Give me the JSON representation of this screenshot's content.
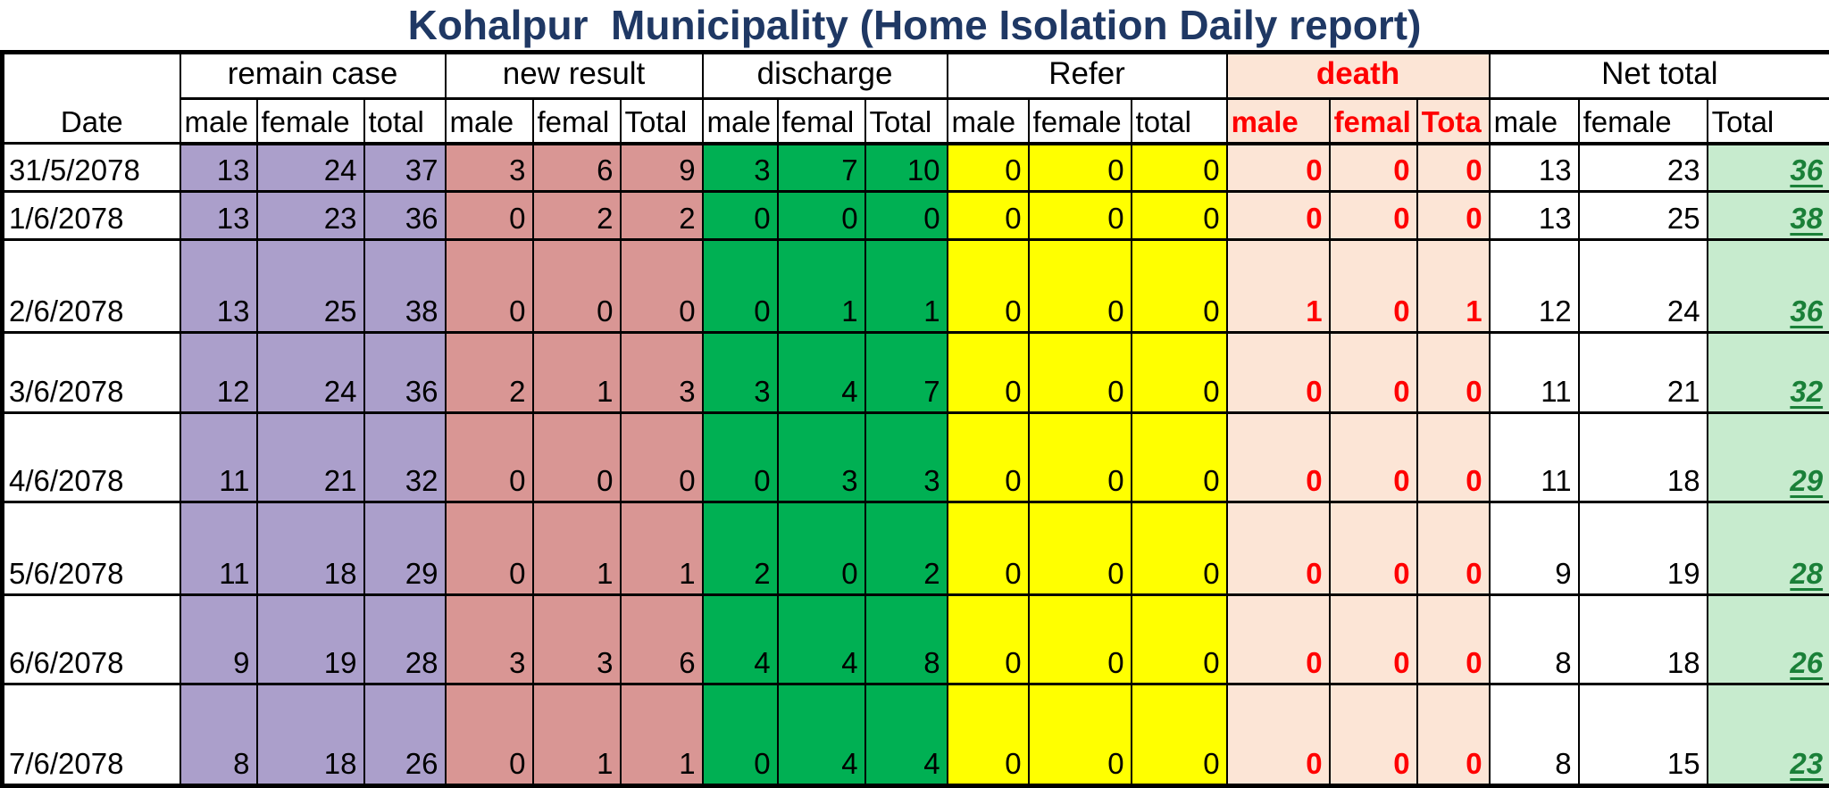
{
  "title": "Kohalpur  Municipality (Home Isolation Daily report)",
  "colors": {
    "title_text": "#1f3864",
    "border": "#000000",
    "remain_bg": "#ab9fcb",
    "new_result_bg": "#d99694",
    "discharge_bg": "#00b053",
    "refer_bg": "#ffff00",
    "death_bg": "#fce5d6",
    "death_text": "#ff0000",
    "net_total_bg": "#c7ebce",
    "net_total_text": "#1a8038"
  },
  "table": {
    "date_header": "Date",
    "groups": [
      {
        "label": "remain case",
        "sub": [
          "male",
          "female",
          "total"
        ]
      },
      {
        "label": "new result",
        "sub": [
          "male",
          "femal",
          "Total"
        ]
      },
      {
        "label": "discharge",
        "sub": [
          "male",
          "femal",
          "Total"
        ]
      },
      {
        "label": "Refer",
        "sub": [
          "male",
          "female",
          "total"
        ]
      },
      {
        "label": "death",
        "sub": [
          "male",
          "femal",
          "Tota"
        ]
      },
      {
        "label": "Net total",
        "sub": [
          "male",
          "female",
          "Total"
        ]
      }
    ],
    "rows": [
      {
        "date": "31/5/2078",
        "remain": [
          13,
          24,
          37
        ],
        "new_result": [
          3,
          6,
          9
        ],
        "discharge": [
          3,
          7,
          10
        ],
        "refer": [
          0,
          0,
          0
        ],
        "death": [
          0,
          0,
          0
        ],
        "net_total": [
          13,
          23,
          36
        ]
      },
      {
        "date": "1/6/2078",
        "remain": [
          13,
          23,
          36
        ],
        "new_result": [
          0,
          2,
          2
        ],
        "discharge": [
          0,
          0,
          0
        ],
        "refer": [
          0,
          0,
          0
        ],
        "death": [
          0,
          0,
          0
        ],
        "net_total": [
          13,
          25,
          38
        ]
      },
      {
        "date": "2/6/2078",
        "remain": [
          13,
          25,
          38
        ],
        "new_result": [
          0,
          0,
          0
        ],
        "discharge": [
          0,
          1,
          1
        ],
        "refer": [
          0,
          0,
          0
        ],
        "death": [
          1,
          0,
          1
        ],
        "net_total": [
          12,
          24,
          36
        ]
      },
      {
        "date": "3/6/2078",
        "remain": [
          12,
          24,
          36
        ],
        "new_result": [
          2,
          1,
          3
        ],
        "discharge": [
          3,
          4,
          7
        ],
        "refer": [
          0,
          0,
          0
        ],
        "death": [
          0,
          0,
          0
        ],
        "net_total": [
          11,
          21,
          32
        ]
      },
      {
        "date": "4/6/2078",
        "remain": [
          11,
          21,
          32
        ],
        "new_result": [
          0,
          0,
          0
        ],
        "discharge": [
          0,
          3,
          3
        ],
        "refer": [
          0,
          0,
          0
        ],
        "death": [
          0,
          0,
          0
        ],
        "net_total": [
          11,
          18,
          29
        ]
      },
      {
        "date": "5/6/2078",
        "remain": [
          11,
          18,
          29
        ],
        "new_result": [
          0,
          1,
          1
        ],
        "discharge": [
          2,
          0,
          2
        ],
        "refer": [
          0,
          0,
          0
        ],
        "death": [
          0,
          0,
          0
        ],
        "net_total": [
          9,
          19,
          28
        ]
      },
      {
        "date": "6/6/2078",
        "remain": [
          9,
          19,
          28
        ],
        "new_result": [
          3,
          3,
          6
        ],
        "discharge": [
          4,
          4,
          8
        ],
        "refer": [
          0,
          0,
          0
        ],
        "death": [
          0,
          0,
          0
        ],
        "net_total": [
          8,
          18,
          26
        ]
      },
      {
        "date": "7/6/2078",
        "remain": [
          8,
          18,
          26
        ],
        "new_result": [
          0,
          1,
          1
        ],
        "discharge": [
          0,
          4,
          4
        ],
        "refer": [
          0,
          0,
          0
        ],
        "death": [
          0,
          0,
          0
        ],
        "net_total": [
          8,
          15,
          23
        ]
      }
    ]
  }
}
